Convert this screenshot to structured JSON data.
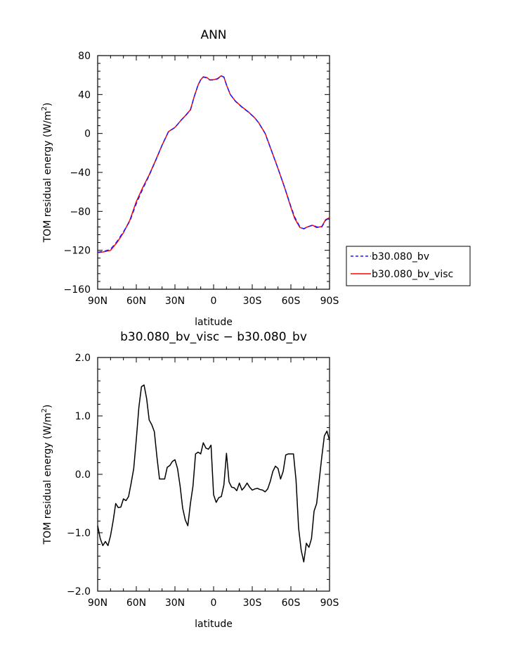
{
  "chart_data": [
    {
      "type": "line",
      "title": "ANN",
      "xlabel": "latitude",
      "ylabel": "TOM residual energy (W/m²)",
      "ylabel_main": "TOM residual energy (W/m",
      "ylabel_sup": "2",
      "ylabel_end": ")",
      "xlim": [
        90,
        -90
      ],
      "ylim": [
        -160,
        80
      ],
      "xticks": [
        90,
        60,
        30,
        0,
        -30,
        -60,
        -90
      ],
      "xtick_labels": [
        "90N",
        "60N",
        "30N",
        "0",
        "30S",
        "60S",
        "90S"
      ],
      "yticks": [
        80,
        40,
        0,
        -40,
        -80,
        -120,
        -160
      ],
      "ytick_labels": [
        "80",
        "40",
        "0",
        "−40",
        "−80",
        "−120",
        "−160"
      ],
      "legend_position": "right",
      "series": [
        {
          "name": "b30.080_bv",
          "color": "#1a1aff",
          "dash": true,
          "x": [
            90,
            85,
            80,
            75,
            70,
            65,
            60,
            55,
            50,
            45,
            40,
            35,
            30,
            25,
            22,
            18,
            15,
            12,
            10,
            8,
            5,
            3,
            0,
            -3,
            -6,
            -8,
            -10,
            -13,
            -17,
            -22,
            -27,
            -32,
            -35,
            -40,
            -45,
            -50,
            -55,
            -60,
            -63,
            -67,
            -70,
            -73,
            -77,
            -80,
            -84,
            -87,
            -90
          ],
          "y": [
            -122,
            -121,
            -119,
            -111,
            -101,
            -90,
            -72,
            -57,
            -43,
            -28,
            -12,
            2,
            6,
            14,
            18,
            24,
            38,
            50,
            55,
            58,
            57,
            55,
            55,
            56,
            59,
            58,
            50,
            40,
            33,
            27,
            22,
            16,
            11,
            0,
            -18,
            -36,
            -55,
            -75,
            -86,
            -96,
            -98,
            -96,
            -94,
            -96,
            -96,
            -89,
            -87
          ]
        },
        {
          "name": "b30.080_bv_visc",
          "color": "#ff0000",
          "dash": false,
          "x": [
            90,
            85,
            80,
            75,
            70,
            65,
            60,
            55,
            50,
            45,
            40,
            35,
            30,
            25,
            22,
            18,
            15,
            12,
            10,
            8,
            5,
            3,
            0,
            -3,
            -6,
            -8,
            -10,
            -13,
            -17,
            -22,
            -27,
            -32,
            -35,
            -40,
            -45,
            -50,
            -55,
            -60,
            -63,
            -67,
            -70,
            -73,
            -77,
            -80,
            -84,
            -87,
            -90
          ],
          "y": [
            -122.5,
            -121.5,
            -120,
            -112,
            -102,
            -89,
            -70,
            -55.5,
            -42.5,
            -27.5,
            -12,
            1.9,
            6.3,
            14,
            18.2,
            24.3,
            38.1,
            49.9,
            55.2,
            58.2,
            57.3,
            55.1,
            55.2,
            56.3,
            59.3,
            57.9,
            49.8,
            39.9,
            33.2,
            27.3,
            22.2,
            16,
            11,
            0.2,
            -17.8,
            -36,
            -55,
            -75.9,
            -87.4,
            -96.6,
            -97.8,
            -95.9,
            -94.3,
            -96.7,
            -95.5,
            -88.5,
            -86.5
          ]
        }
      ]
    },
    {
      "type": "line",
      "title": "b30.080_bv_visc − b30.080_bv",
      "xlabel": "latitude",
      "ylabel": "TOM residual energy (W/m²)",
      "ylabel_main": "TOM residual energy (W/m",
      "ylabel_sup": "2",
      "ylabel_end": ")",
      "xlim": [
        90,
        -90
      ],
      "ylim": [
        -2.0,
        2.0
      ],
      "xticks": [
        90,
        60,
        30,
        0,
        -30,
        -60,
        -90
      ],
      "xtick_labels": [
        "90N",
        "60N",
        "30N",
        "0",
        "30S",
        "60S",
        "90S"
      ],
      "yticks": [
        2.0,
        1.0,
        0.0,
        -1.0,
        -2.0
      ],
      "ytick_labels": [
        "2.0",
        "1.0",
        "0.0",
        "−1.0",
        "−2.0"
      ],
      "series": [
        {
          "color": "#000000",
          "dash": false,
          "x": [
            90,
            88,
            86,
            84,
            82,
            80,
            78,
            76,
            74,
            72,
            70,
            68,
            66,
            64,
            62,
            60,
            58,
            56,
            54,
            52,
            50,
            48,
            46,
            44,
            42,
            40,
            38,
            36,
            34,
            32,
            30,
            28,
            26,
            24,
            22,
            20,
            18,
            16,
            14,
            12,
            10,
            8,
            6,
            4,
            2,
            0,
            -2,
            -4,
            -6,
            -8,
            -10,
            -12,
            -14,
            -16,
            -18,
            -20,
            -22,
            -24,
            -26,
            -28,
            -30,
            -32,
            -34,
            -36,
            -38,
            -40,
            -42,
            -44,
            -46,
            -48,
            -50,
            -52,
            -54,
            -56,
            -58,
            -60,
            -62,
            -64,
            -66,
            -68,
            -70,
            -72,
            -74,
            -76,
            -78,
            -80,
            -82,
            -84,
            -86,
            -88,
            -90
          ],
          "y": [
            -0.88,
            -1.1,
            -1.22,
            -1.15,
            -1.22,
            -1.05,
            -0.8,
            -0.5,
            -0.57,
            -0.56,
            -0.42,
            -0.45,
            -0.38,
            -0.15,
            0.1,
            0.6,
            1.15,
            1.5,
            1.53,
            1.3,
            0.93,
            0.85,
            0.73,
            0.3,
            -0.08,
            -0.08,
            -0.08,
            0.12,
            0.15,
            0.22,
            0.25,
            0.1,
            -0.2,
            -0.58,
            -0.78,
            -0.88,
            -0.5,
            -0.2,
            0.35,
            0.38,
            0.35,
            0.54,
            0.45,
            0.43,
            0.5,
            -0.35,
            -0.48,
            -0.4,
            -0.38,
            -0.18,
            0.36,
            -0.13,
            -0.22,
            -0.23,
            -0.28,
            -0.15,
            -0.27,
            -0.22,
            -0.15,
            -0.22,
            -0.27,
            -0.25,
            -0.24,
            -0.26,
            -0.27,
            -0.3,
            -0.25,
            -0.12,
            0.05,
            0.14,
            0.1,
            -0.08,
            0.05,
            0.33,
            0.35,
            0.35,
            0.35,
            -0.1,
            -0.92,
            -1.3,
            -1.5,
            -1.18,
            -1.25,
            -1.1,
            -0.63,
            -0.5,
            -0.1,
            0.3,
            0.66,
            0.74,
            0.58
          ]
        }
      ]
    }
  ]
}
